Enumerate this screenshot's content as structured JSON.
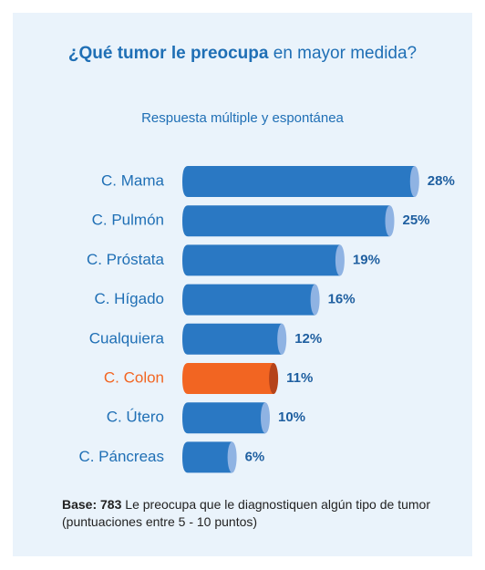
{
  "chart_data": {
    "type": "bar",
    "orientation": "horizontal",
    "title": {
      "emphasis": "¿Qué tumor le preocupa",
      "rest": "en mayor medida?"
    },
    "subtitle": "Respuesta múltiple y espontánea",
    "categories": [
      "C. Mama",
      "C. Pulmón",
      "C. Próstata",
      "C. Hígado",
      "Cualquiera",
      "C. Colon",
      "C. Útero",
      "C. Páncreas"
    ],
    "values": [
      28,
      25,
      19,
      16,
      12,
      11,
      10,
      6
    ],
    "value_labels": [
      "28%",
      "25%",
      "19%",
      "16%",
      "12%",
      "11%",
      "10%",
      "6%"
    ],
    "colors": [
      "#2a78c3",
      "#2a78c3",
      "#2a78c3",
      "#2a78c3",
      "#2a78c3",
      "#f26522",
      "#2a78c3",
      "#2a78c3"
    ],
    "cap_colors": [
      "#8fb3e3",
      "#8fb3e3",
      "#8fb3e3",
      "#8fb3e3",
      "#8fb3e3",
      "#b5431a",
      "#8fb3e3",
      "#8fb3e3"
    ],
    "note": {
      "emphasis": "Base: 783",
      "rest": "Le preocupa que le diagnostiquen algún tipo de tumor (puntuaciones entre 5 - 10 puntos)"
    }
  }
}
